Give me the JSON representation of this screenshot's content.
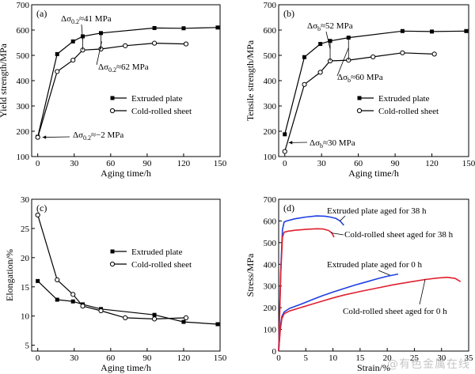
{
  "figure": {
    "watermark": "@有色金属在线"
  },
  "chart_data": [
    {
      "id": "a",
      "panel_label": "(a)",
      "type": "line",
      "xlabel": "Aging time/h",
      "ylabel": "Yield strength/MPa",
      "xlim": [
        -5,
        150
      ],
      "ylim": [
        100,
        700
      ],
      "xticks": [
        0,
        30,
        60,
        90,
        120,
        150
      ],
      "yticks": [
        100,
        200,
        300,
        400,
        500,
        600,
        700
      ],
      "legend_position": "center-right",
      "series": [
        {
          "name": "Extruded plate",
          "marker": "square",
          "x": [
            0,
            16,
            29,
            37,
            52,
            96,
            120,
            148
          ],
          "y": [
            178,
            505,
            555,
            575,
            588,
            608,
            607,
            610
          ]
        },
        {
          "name": "Cold-rolled sheet",
          "marker": "circle",
          "x": [
            0,
            16,
            29,
            37,
            52,
            72,
            96,
            122
          ],
          "y": [
            176,
            436,
            481,
            521,
            525,
            538,
            548,
            545
          ]
        }
      ],
      "annotations": [
        {
          "prefix": "Δσ",
          "sub": "0.2",
          "suffix": "≈41 MPa"
        },
        {
          "prefix": "Δσ",
          "sub": "0.2",
          "suffix": "≈62 MPa"
        },
        {
          "prefix": "Δσ",
          "sub": "0.2",
          "suffix": "≈−2 MPa"
        }
      ]
    },
    {
      "id": "b",
      "panel_label": "(b)",
      "type": "line",
      "xlabel": "Aging time/h",
      "ylabel": "Tensile strength/MPa",
      "xlim": [
        -5,
        150
      ],
      "ylim": [
        100,
        700
      ],
      "xticks": [
        0,
        30,
        60,
        90,
        120,
        150
      ],
      "yticks": [
        100,
        200,
        300,
        400,
        500,
        600,
        700
      ],
      "legend_position": "center-right",
      "series": [
        {
          "name": "Extruded plate",
          "marker": "square",
          "x": [
            0,
            16,
            29,
            37,
            52,
            96,
            120,
            148
          ],
          "y": [
            188,
            493,
            545,
            557,
            570,
            596,
            594,
            596
          ]
        },
        {
          "name": "Cold-rolled sheet",
          "marker": "circle",
          "x": [
            0,
            16,
            29,
            37,
            52,
            72,
            96,
            122
          ],
          "y": [
            120,
            385,
            433,
            478,
            481,
            494,
            510,
            505
          ]
        }
      ],
      "annotations": [
        {
          "prefix": "Δσ",
          "sub": "b",
          "suffix": "≈52 MPa"
        },
        {
          "prefix": "Δσ",
          "sub": "b",
          "suffix": "≈60 MPa"
        },
        {
          "prefix": "Δσ",
          "sub": "b",
          "suffix": "≈30 MPa"
        }
      ]
    },
    {
      "id": "c",
      "panel_label": "(c)",
      "type": "line",
      "xlabel": "Aging time/h",
      "ylabel": "Elongation/%",
      "xlim": [
        -5,
        150
      ],
      "ylim": [
        4,
        30
      ],
      "xticks": [
        0,
        30,
        60,
        90,
        120,
        150
      ],
      "yticks": [
        5,
        10,
        15,
        20,
        25,
        30
      ],
      "legend_position": "center-right",
      "series": [
        {
          "name": "Extruded plate",
          "marker": "square",
          "x": [
            0,
            16,
            29,
            37,
            52,
            96,
            120,
            148
          ],
          "y": [
            16.0,
            12.8,
            12.5,
            12.0,
            11.2,
            10.2,
            9.0,
            8.6
          ]
        },
        {
          "name": "Cold-rolled sheet",
          "marker": "circle",
          "x": [
            0,
            16,
            29,
            37,
            52,
            72,
            96,
            122
          ],
          "y": [
            27.3,
            16.2,
            13.7,
            11.7,
            10.9,
            9.7,
            9.5,
            9.7
          ]
        }
      ]
    },
    {
      "id": "d",
      "panel_label": "(d)",
      "type": "line",
      "xlabel": "Strain/%",
      "ylabel": "Stress/MPa",
      "xlim": [
        0,
        35
      ],
      "ylim": [
        0,
        700
      ],
      "xticks": [
        0,
        5,
        10,
        15,
        20,
        25,
        30,
        35
      ],
      "yticks": [
        0,
        100,
        200,
        300,
        400,
        500,
        600,
        700
      ],
      "legend_position": "none",
      "series": [
        {
          "name": "Extruded plate aged for 38 h",
          "color": "#1f3fe0",
          "x": [
            0,
            0.4,
            0.7,
            1.0,
            1.5,
            3,
            5,
            7,
            8.5,
            9.5,
            10.5,
            11.3,
            12.0
          ],
          "y": [
            0,
            380,
            560,
            595,
            600,
            610,
            618,
            623,
            622,
            618,
            612,
            600,
            580
          ]
        },
        {
          "name": "Cold-rolled sheet aged for 38 h",
          "color": "#e02030",
          "x": [
            0,
            0.4,
            0.7,
            1.0,
            1.6,
            3,
            5,
            7,
            8.2,
            9.2,
            9.8,
            10.2
          ],
          "y": [
            0,
            360,
            525,
            548,
            552,
            557,
            561,
            564,
            563,
            556,
            545,
            525
          ]
        },
        {
          "name": "Extruded plate aged for 0 h",
          "color": "#1f3fe0",
          "x": [
            0,
            0.3,
            0.6,
            1.0,
            2,
            4,
            6,
            8,
            10,
            12,
            14,
            16,
            18,
            20,
            21,
            22
          ],
          "y": [
            0,
            110,
            160,
            180,
            197,
            215,
            235,
            255,
            272,
            288,
            304,
            318,
            332,
            345,
            350,
            355
          ]
        },
        {
          "name": "Cold-rolled sheet aged for 0 h",
          "color": "#e02030",
          "x": [
            0,
            0.3,
            0.6,
            1.0,
            2,
            4,
            6,
            8,
            10,
            12,
            15,
            18,
            21,
            24,
            27,
            29,
            31,
            32.5,
            33.5
          ],
          "y": [
            0,
            100,
            150,
            172,
            185,
            200,
            215,
            230,
            245,
            258,
            275,
            290,
            305,
            318,
            330,
            336,
            340,
            335,
            320
          ]
        }
      ]
    }
  ]
}
